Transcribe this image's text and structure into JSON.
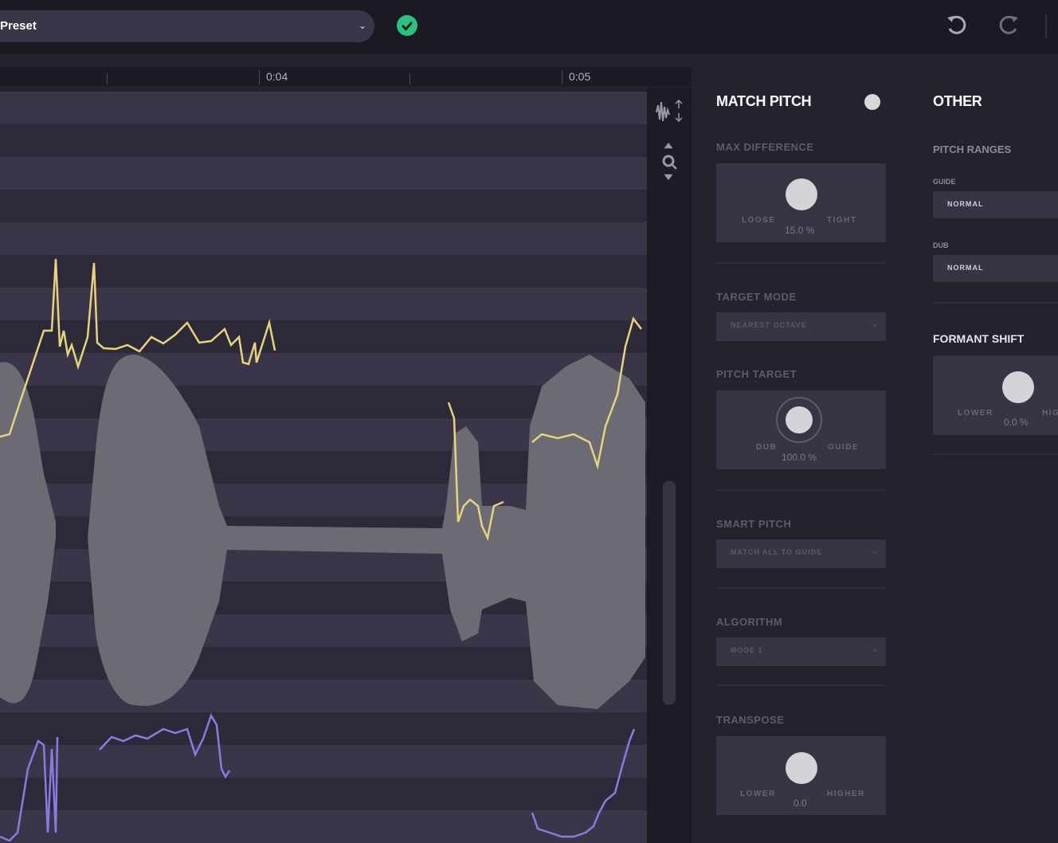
{
  "toolbar": {
    "preset": "Preset"
  },
  "timeline": {
    "markers": [
      "0:04",
      "0:05"
    ]
  },
  "match_pitch": {
    "title": "MATCH PITCH",
    "max_difference": {
      "label": "MAX DIFFERENCE",
      "left": "LOOSE",
      "right": "TIGHT",
      "value": "15.0 %"
    },
    "target_mode": {
      "label": "TARGET MODE",
      "value": "NEAREST OCTAVE"
    },
    "pitch_target": {
      "label": "PITCH TARGET",
      "left": "DUB",
      "right": "GUIDE",
      "value": "100.0 %"
    },
    "smart_pitch": {
      "label": "SMART PITCH",
      "value": "MATCH ALL TO GUIDE"
    },
    "algorithm": {
      "label": "ALGORITHM",
      "value": "MODE 1"
    },
    "transpose": {
      "label": "TRANSPOSE",
      "left": "LOWER",
      "right": "HIGHER",
      "value": "0.0"
    }
  },
  "other": {
    "title": "OTHER",
    "pitch_ranges": {
      "label": "PITCH RANGES",
      "guide_label": "GUIDE",
      "guide_value": "NORMAL",
      "dub_label": "DUB",
      "dub_value": "NORMAL"
    },
    "formant_shift": {
      "label": "FORMANT SHIFT",
      "left": "LOWER",
      "right": "HIGHER",
      "value": "0.0 %"
    }
  }
}
